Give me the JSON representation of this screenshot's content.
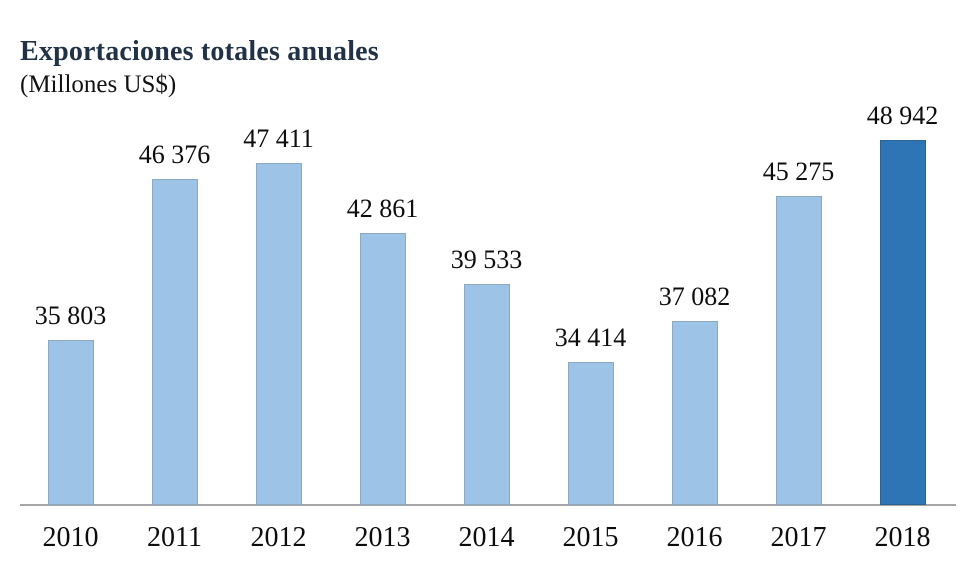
{
  "header": {
    "title": "Exportaciones totales anuales",
    "subtitle": "(Millones US$)"
  },
  "chart_data": {
    "type": "bar",
    "title": "Exportaciones totales anuales",
    "subtitle": "(Millones US$)",
    "categories": [
      "2010",
      "2011",
      "2012",
      "2013",
      "2014",
      "2015",
      "2016",
      "2017",
      "2018"
    ],
    "values": [
      35803,
      46376,
      47411,
      42861,
      39533,
      34414,
      37082,
      45275,
      48942
    ],
    "value_labels": [
      "35 803",
      "46 376",
      "47 411",
      "42 861",
      "39 533",
      "34 414",
      "37 082",
      "45 275",
      "48 942"
    ],
    "xlabel": "",
    "ylabel": "Millones US$",
    "ylim": [
      25000,
      50000
    ],
    "grid": false,
    "legend": false,
    "highlight_index": 8,
    "colors": {
      "bar_fill": "#9dc3e6",
      "bar_border": "#8ca8c2",
      "highlight_fill": "#2e75b6",
      "highlight_border": "#2b628f",
      "axis_line": "#a6a6a6",
      "title_text": "#223246",
      "label_text": "#0d0d0d"
    }
  }
}
